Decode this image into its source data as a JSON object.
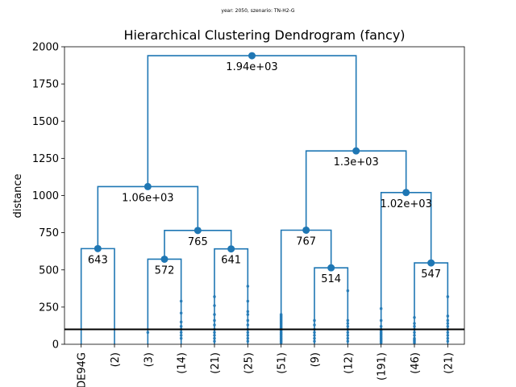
{
  "figure": {
    "suptitle": "year: 2050, szenario: TN-H2-G"
  },
  "chart_data": {
    "type": "dendrogram",
    "title": "Hierarchical Clustering Dendrogram (fancy)",
    "xlabel": "",
    "ylabel": "distance",
    "ylim": [
      0,
      2000
    ],
    "yticks": [
      0,
      250,
      500,
      750,
      1000,
      1250,
      1500,
      1750,
      2000
    ],
    "cut_distance": 100,
    "leaves": [
      "DE94G",
      "(2)",
      "(3)",
      "(14)",
      "(21)",
      "(25)",
      "(51)",
      "(9)",
      "(12)",
      "(191)",
      "(46)",
      "(21)"
    ],
    "merges": [
      {
        "left": 0,
        "right": 1,
        "height": 643,
        "label": "643"
      },
      {
        "left": 2,
        "right": 3,
        "height": 572,
        "label": "572"
      },
      {
        "left": 4,
        "right": 5,
        "height": 641,
        "label": "641"
      },
      {
        "left": "m1",
        "right": "m2",
        "height": 765,
        "label": "765"
      },
      {
        "left": "m0",
        "right": "m3",
        "height": 1060,
        "label": "1.06e+03"
      },
      {
        "left": 7,
        "right": 8,
        "height": 514,
        "label": "514"
      },
      {
        "left": 6,
        "right": "m5",
        "height": 767,
        "label": "767"
      },
      {
        "left": 10,
        "right": 11,
        "height": 547,
        "label": "547"
      },
      {
        "left": 9,
        "right": "m7",
        "height": 1020,
        "label": "1.02e+03"
      },
      {
        "left": "m6",
        "right": "m8",
        "height": 1300,
        "label": "1.3e+03"
      },
      {
        "left": "m4",
        "right": "m9",
        "height": 1940,
        "label": "1.94e+03"
      }
    ],
    "leaf_dots": [
      [],
      [],
      [
        80
      ],
      [
        40,
        60,
        80,
        100,
        120,
        150,
        210,
        290
      ],
      [
        20,
        40,
        60,
        80,
        100,
        130,
        160,
        200,
        260,
        320
      ],
      [
        20,
        40,
        60,
        80,
        100,
        130,
        160,
        200,
        220,
        290,
        390
      ],
      [
        10,
        20,
        30,
        40,
        50,
        60,
        70,
        80,
        90,
        100,
        110,
        120,
        130,
        140,
        150,
        160,
        170,
        180,
        190,
        200
      ],
      [
        20,
        40,
        60,
        80,
        100,
        130,
        160
      ],
      [
        20,
        40,
        60,
        80,
        100,
        120,
        140,
        160,
        360
      ],
      [
        10,
        20,
        30,
        40,
        50,
        60,
        70,
        80,
        90,
        100,
        120,
        160,
        240
      ],
      [
        10,
        20,
        30,
        40,
        60,
        80,
        100,
        120,
        140,
        180
      ],
      [
        20,
        40,
        60,
        80,
        100,
        120,
        140,
        160,
        190,
        320
      ]
    ]
  }
}
